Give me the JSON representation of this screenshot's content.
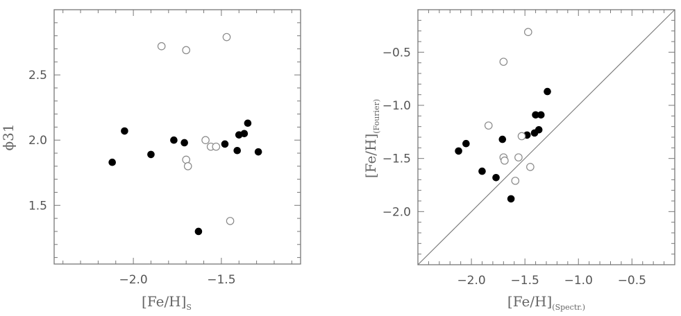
{
  "chart_data": [
    {
      "type": "scatter",
      "xlabel": "[Fe/H]",
      "xlabel_sub": "S",
      "ylabel": "ϕ31",
      "xlim": [
        -2.45,
        -1.05
      ],
      "ylim": [
        1.05,
        3.0
      ],
      "xticks": [
        -2.0,
        -1.5
      ],
      "xtick_labels": [
        "−2.0",
        "−1.5"
      ],
      "yticks": [
        1.5,
        2.0,
        2.5
      ],
      "ytick_labels": [
        "1.5",
        "2.0",
        "2.5"
      ],
      "grid": false,
      "series": [
        {
          "marker": "filled-circle",
          "color": "#000000",
          "points": [
            [
              -2.12,
              1.83
            ],
            [
              -2.05,
              2.07
            ],
            [
              -1.9,
              1.89
            ],
            [
              -1.77,
              2.0
            ],
            [
              -1.71,
              1.98
            ],
            [
              -1.63,
              1.3
            ],
            [
              -1.48,
              1.97
            ],
            [
              -1.41,
              1.92
            ],
            [
              -1.4,
              2.04
            ],
            [
              -1.37,
              2.05
            ],
            [
              -1.35,
              2.13
            ],
            [
              -1.29,
              1.91
            ]
          ]
        },
        {
          "marker": "open-circle",
          "color": "#888888",
          "points": [
            [
              -1.84,
              2.72
            ],
            [
              -1.7,
              2.69
            ],
            [
              -1.47,
              2.79
            ],
            [
              -1.59,
              2.0
            ],
            [
              -1.56,
              1.95
            ],
            [
              -1.53,
              1.95
            ],
            [
              -1.7,
              1.85
            ],
            [
              -1.69,
              1.8
            ],
            [
              -1.45,
              1.38
            ]
          ]
        }
      ]
    },
    {
      "type": "scatter",
      "xlabel": "[Fe/H]",
      "xlabel_sub": "(Spectr.)",
      "ylabel": "[Fe/H]",
      "ylabel_sub": "(Fourier)",
      "xlim": [
        -2.5,
        -0.1
      ],
      "ylim": [
        -2.5,
        -0.1
      ],
      "xticks": [
        -2.0,
        -1.5,
        -1.0,
        -0.5
      ],
      "xtick_labels": [
        "−2.0",
        "−1.5",
        "−1.0",
        "−0.5"
      ],
      "yticks": [
        -2.0,
        -1.5,
        -1.0,
        -0.5
      ],
      "ytick_labels": [
        "−2.0",
        "−1.5",
        "−1.0",
        "−0.5"
      ],
      "grid": false,
      "reference_line": "one-to-one",
      "series": [
        {
          "marker": "filled-circle",
          "color": "#000000",
          "points": [
            [
              -2.12,
              -1.43
            ],
            [
              -2.05,
              -1.36
            ],
            [
              -1.9,
              -1.62
            ],
            [
              -1.77,
              -1.68
            ],
            [
              -1.71,
              -1.32
            ],
            [
              -1.63,
              -1.88
            ],
            [
              -1.48,
              -1.28
            ],
            [
              -1.41,
              -1.26
            ],
            [
              -1.4,
              -1.09
            ],
            [
              -1.37,
              -1.23
            ],
            [
              -1.35,
              -1.09
            ],
            [
              -1.29,
              -0.87
            ]
          ]
        },
        {
          "marker": "open-circle",
          "color": "#888888",
          "points": [
            [
              -1.84,
              -1.19
            ],
            [
              -1.7,
              -0.59
            ],
            [
              -1.47,
              -0.31
            ],
            [
              -1.59,
              -1.71
            ],
            [
              -1.56,
              -1.49
            ],
            [
              -1.53,
              -1.29
            ],
            [
              -1.7,
              -1.49
            ],
            [
              -1.69,
              -1.52
            ],
            [
              -1.45,
              -1.58
            ]
          ]
        }
      ]
    }
  ]
}
